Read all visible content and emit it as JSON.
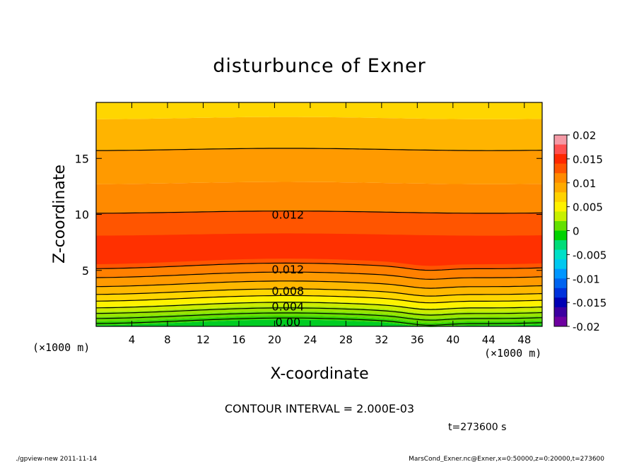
{
  "chart_data": {
    "type": "heatmap",
    "title": "disturbunce of Exner",
    "xlabel": "X-coordinate",
    "ylabel": "Z-coordinate",
    "x_unit": "(×1000 m)",
    "y_unit": "(×1000 m)",
    "xlim": [
      0,
      50
    ],
    "ylim": [
      0,
      20
    ],
    "x_ticks": [
      4,
      8,
      12,
      16,
      20,
      24,
      28,
      32,
      36,
      40,
      44,
      48
    ],
    "y_ticks": [
      5,
      10,
      15
    ],
    "contour_interval_text": "CONTOUR INTERVAL = 2.000E-03",
    "contour_levels": [
      0.0,
      0.002,
      0.004,
      0.006,
      0.008,
      0.01,
      0.012,
      0.012,
      0.014
    ],
    "contour_labels": [
      "0.012",
      "0.012",
      "0.008",
      "0.004",
      "0.00"
    ],
    "time_text": "t=273600 s",
    "colorbar": {
      "ticks": [
        "0.02",
        "0.015",
        "0.01",
        "0.005",
        "0",
        "-0.005",
        "-0.01",
        "-0.015",
        "-0.02"
      ],
      "range": [
        -0.02,
        0.02
      ],
      "colors": [
        "#f59aa6",
        "#ff5050",
        "#ff2800",
        "#ff5500",
        "#ff8a00",
        "#ffaa00",
        "#ffd200",
        "#fff200",
        "#c8f000",
        "#64e000",
        "#00d200",
        "#00dc78",
        "#00e0c8",
        "#00c8f0",
        "#0096ff",
        "#0064f0",
        "#0032dc",
        "#0000b4",
        "#3c00a0",
        "#6e00a0"
      ]
    },
    "bands": [
      {
        "z": [
          0.0,
          0.35
        ],
        "color": "#00cc22"
      },
      {
        "z": [
          0.35,
          0.7
        ],
        "color": "#33d400"
      },
      {
        "z": [
          0.7,
          1.1
        ],
        "color": "#66dc00"
      },
      {
        "z": [
          1.1,
          1.55
        ],
        "color": "#99e400"
      },
      {
        "z": [
          1.55,
          2.0
        ],
        "color": "#ccec00"
      },
      {
        "z": [
          2.0,
          2.5
        ],
        "color": "#fff200"
      },
      {
        "z": [
          2.5,
          3.1
        ],
        "color": "#ffd600"
      },
      {
        "z": [
          3.1,
          3.8
        ],
        "color": "#ffb800"
      },
      {
        "z": [
          3.8,
          4.6
        ],
        "color": "#ff9a00"
      },
      {
        "z": [
          4.6,
          5.4
        ],
        "color": "#ff8000"
      },
      {
        "z": [
          5.4,
          10.2
        ],
        "color": "#ff5500"
      },
      {
        "z": [
          10.2,
          12.8
        ],
        "color": "#ff8a00"
      },
      {
        "z": [
          12.8,
          15.8
        ],
        "color": "#ff9a00"
      },
      {
        "z": [
          15.8,
          18.6
        ],
        "color": "#ffb400"
      },
      {
        "z": [
          18.6,
          20.0
        ],
        "color": "#ffd600"
      }
    ],
    "core_region": {
      "z": [
        5.8,
        8.2
      ],
      "color": "#ff3000"
    }
  },
  "footer": {
    "left": "./gpview-new   2011-11-14",
    "right": "MarsCond_Exner.nc@Exner,x=0:50000,z=0:20000,t=273600"
  }
}
